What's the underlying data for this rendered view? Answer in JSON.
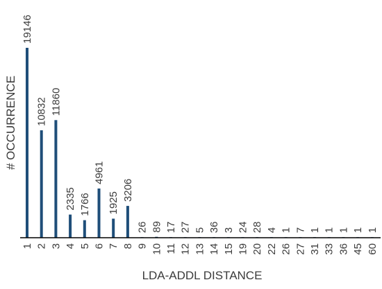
{
  "chart_data": {
    "type": "bar",
    "xlabel": "LDA-ADDL DISTANCE",
    "ylabel": "# OCCURRENCE",
    "categories": [
      "1",
      "2",
      "3",
      "4",
      "5",
      "6",
      "7",
      "8",
      "9",
      "10",
      "11",
      "12",
      "13",
      "14",
      "15",
      "19",
      "20",
      "22",
      "26",
      "27",
      "31",
      "33",
      "36",
      "45",
      "60"
    ],
    "values": [
      19146,
      10832,
      11860,
      2335,
      1766,
      4961,
      1925,
      3206,
      26,
      89,
      17,
      27,
      5,
      36,
      3,
      24,
      28,
      4,
      1,
      7,
      1,
      1,
      1,
      1,
      1
    ],
    "data_labels": [
      "19146",
      "10832",
      "11860",
      "2335",
      "1766",
      "4961",
      "1925",
      "3206",
      "26",
      "89",
      "17",
      "27",
      "5",
      "36",
      "3",
      "24",
      "28",
      "4",
      "1",
      "7",
      "1",
      "1",
      "1",
      "1",
      "1"
    ],
    "ylim": [
      0,
      19146
    ],
    "grid": false,
    "legend": "none",
    "colors": {
      "bar": "#1f4e79",
      "axis": "#000000",
      "text": "#3b3b3b"
    }
  }
}
